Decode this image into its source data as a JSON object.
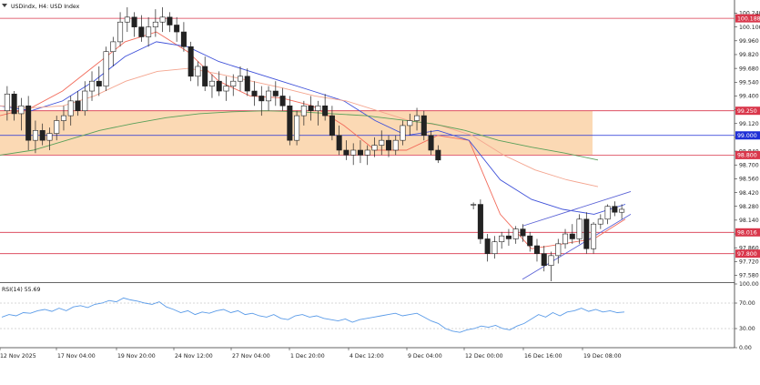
{
  "header": {
    "symbol_label": "USDindx, H4:  USD Index"
  },
  "rsi_label": "RSI(14) 55.69",
  "colors": {
    "zone_fill": "#fbd9b4",
    "level_line": "#d9374b",
    "blue_level": "#1f2fd6",
    "ema_fast": "#f26b5b",
    "ema_mid": "#3f51d9",
    "ema_slow": "#f4a58f",
    "ema_long": "#5aa05a",
    "trendline": "#5b63d6",
    "rsi_line": "#5a9be8",
    "candle": "#222222",
    "grid_axis": "#9a9a9a"
  },
  "chart_data": [
    {
      "type": "candlestick",
      "title": "USDindx, H4:  USD Index",
      "price_ticks": [
        "100.240",
        "100.100",
        "99.960",
        "99.820",
        "99.680",
        "99.540",
        "99.400",
        "99.260",
        "99.120",
        "98.980",
        "98.840",
        "98.700",
        "98.560",
        "98.420",
        "98.280",
        "98.140",
        "98.000",
        "97.860",
        "97.720",
        "97.580"
      ],
      "ylim": [
        97.52,
        100.3
      ],
      "time_ticks": [
        "12 Nov 2025",
        "17 Nov 04:00",
        "19 Nov 20:00",
        "24 Nov 12:00",
        "27 Nov 04:00",
        "1 Dec 20:00",
        "4 Dec 12:00",
        "9 Dec 04:00",
        "12 Dec 00:00",
        "16 Dec 16:00",
        "19 Dec 08:00"
      ],
      "level_tags": [
        {
          "value": 100.188,
          "label": "100.188",
          "kind": "red"
        },
        {
          "value": 99.25,
          "label": "99.250",
          "kind": "red"
        },
        {
          "value": 99.0,
          "label": "99.000",
          "kind": "blue"
        },
        {
          "value": 98.8,
          "label": "98.800",
          "kind": "red"
        },
        {
          "value": 98.016,
          "label": "98.016",
          "kind": "red"
        },
        {
          "value": 97.8,
          "label": "97.800",
          "kind": "red"
        }
      ],
      "zone": {
        "top": 99.25,
        "bottom": 98.8
      },
      "ohlc": [
        [
          99.25,
          99.5,
          99.15,
          99.42
        ],
        [
          99.42,
          99.45,
          99.15,
          99.22
        ],
        [
          99.22,
          99.38,
          99.05,
          99.3
        ],
        [
          99.3,
          99.4,
          98.85,
          98.95
        ],
        [
          98.95,
          99.15,
          98.82,
          99.05
        ],
        [
          99.05,
          99.12,
          98.9,
          98.95
        ],
        [
          98.95,
          99.08,
          98.85,
          99.02
        ],
        [
          99.02,
          99.2,
          98.95,
          99.15
        ],
        [
          99.15,
          99.3,
          99.05,
          99.2
        ],
        [
          99.2,
          99.4,
          99.1,
          99.35
        ],
        [
          99.35,
          99.45,
          99.2,
          99.25
        ],
        [
          99.25,
          99.55,
          99.2,
          99.45
        ],
        [
          99.45,
          99.65,
          99.35,
          99.55
        ],
        [
          99.55,
          99.7,
          99.4,
          99.5
        ],
        [
          99.5,
          99.9,
          99.45,
          99.85
        ],
        [
          99.85,
          100.0,
          99.7,
          99.95
        ],
        [
          99.95,
          100.25,
          99.9,
          100.15
        ],
        [
          100.15,
          100.3,
          100.05,
          100.2
        ],
        [
          100.2,
          100.25,
          100.0,
          100.1
        ],
        [
          100.1,
          100.22,
          99.95,
          100.0
        ],
        [
          100.0,
          100.2,
          99.9,
          100.1
        ],
        [
          100.1,
          100.28,
          100.0,
          100.15
        ],
        [
          100.15,
          100.3,
          100.05,
          100.2
        ],
        [
          100.2,
          100.25,
          100.05,
          100.12
        ],
        [
          100.12,
          100.2,
          99.95,
          100.05
        ],
        [
          100.05,
          100.15,
          99.85,
          99.9
        ],
        [
          99.9,
          99.95,
          99.55,
          99.6
        ],
        [
          99.6,
          99.75,
          99.5,
          99.7
        ],
        [
          99.7,
          99.8,
          99.45,
          99.5
        ],
        [
          99.5,
          99.62,
          99.38,
          99.55
        ],
        [
          99.55,
          99.65,
          99.4,
          99.45
        ],
        [
          99.45,
          99.6,
          99.35,
          99.5
        ],
        [
          99.5,
          99.62,
          99.4,
          99.55
        ],
        [
          99.55,
          99.7,
          99.45,
          99.6
        ],
        [
          99.6,
          99.68,
          99.4,
          99.45
        ],
        [
          99.45,
          99.55,
          99.3,
          99.4
        ],
        [
          99.4,
          99.5,
          99.2,
          99.35
        ],
        [
          99.35,
          99.5,
          99.25,
          99.45
        ],
        [
          99.45,
          99.55,
          99.3,
          99.4
        ],
        [
          99.4,
          99.48,
          99.25,
          99.3
        ],
        [
          99.3,
          99.4,
          98.9,
          98.95
        ],
        [
          98.95,
          99.25,
          98.9,
          99.2
        ],
        [
          99.2,
          99.35,
          99.1,
          99.3
        ],
        [
          99.3,
          99.4,
          99.15,
          99.25
        ],
        [
          99.25,
          99.35,
          99.1,
          99.3
        ],
        [
          99.3,
          99.42,
          99.15,
          99.2
        ],
        [
          99.2,
          99.3,
          98.95,
          99.0
        ],
        [
          99.0,
          99.1,
          98.8,
          98.85
        ],
        [
          98.85,
          98.95,
          98.75,
          98.8
        ],
        [
          98.8,
          98.92,
          98.7,
          98.85
        ],
        [
          98.85,
          98.95,
          98.72,
          98.8
        ],
        [
          98.8,
          98.9,
          98.7,
          98.85
        ],
        [
          98.85,
          98.98,
          98.78,
          98.9
        ],
        [
          98.9,
          99.05,
          98.8,
          98.95
        ],
        [
          98.95,
          99.0,
          98.78,
          98.85
        ],
        [
          98.85,
          99.0,
          98.8,
          98.95
        ],
        [
          98.95,
          99.15,
          98.9,
          99.1
        ],
        [
          99.1,
          99.22,
          99.0,
          99.15
        ],
        [
          99.15,
          99.28,
          99.05,
          99.2
        ],
        [
          99.2,
          99.25,
          98.95,
          99.0
        ],
        [
          99.0,
          99.05,
          98.8,
          98.85
        ],
        [
          98.85,
          98.9,
          98.72,
          98.75
        ],
        [
          98.3,
          98.32,
          98.25,
          98.3
        ],
        [
          98.3,
          98.35,
          97.9,
          97.95
        ],
        [
          97.95,
          98.0,
          97.72,
          97.8
        ],
        [
          97.8,
          97.98,
          97.75,
          97.92
        ],
        [
          97.92,
          98.02,
          97.85,
          97.98
        ],
        [
          97.98,
          98.05,
          97.88,
          97.95
        ],
        [
          97.95,
          98.08,
          97.9,
          98.05
        ],
        [
          98.05,
          98.1,
          97.92,
          97.98
        ],
        [
          97.98,
          98.02,
          97.82,
          97.88
        ],
        [
          97.88,
          97.95,
          97.72,
          97.8
        ],
        [
          97.8,
          97.88,
          97.62,
          97.68
        ],
        [
          97.68,
          97.82,
          97.52,
          97.78
        ],
        [
          97.78,
          97.95,
          97.7,
          97.9
        ],
        [
          97.9,
          98.05,
          97.85,
          98.0
        ],
        [
          98.0,
          98.1,
          97.9,
          97.95
        ],
        [
          97.95,
          98.2,
          97.9,
          98.15
        ],
        [
          98.15,
          98.22,
          97.8,
          97.85
        ],
        [
          97.85,
          98.12,
          97.8,
          98.1
        ],
        [
          98.1,
          98.2,
          98.05,
          98.15
        ],
        [
          98.15,
          98.3,
          98.1,
          98.28
        ],
        [
          98.28,
          98.33,
          98.18,
          98.22
        ],
        [
          98.22,
          98.3,
          98.15,
          98.25
        ]
      ],
      "moving_averages": {
        "fast": [
          99.2,
          99.28,
          99.45,
          99.7,
          99.95,
          100.05,
          99.85,
          99.55,
          99.4,
          99.38,
          99.3,
          99.1,
          98.85,
          98.85,
          99.0,
          98.95,
          98.2,
          97.85,
          97.9,
          97.95,
          98.15
        ],
        "mid": [
          99.3,
          99.25,
          99.35,
          99.55,
          99.8,
          99.95,
          99.9,
          99.75,
          99.65,
          99.55,
          99.45,
          99.35,
          99.15,
          99.0,
          99.05,
          98.95,
          98.55,
          98.35,
          98.25,
          98.2,
          98.3
        ],
        "slow": [
          99.3,
          99.28,
          99.3,
          99.4,
          99.55,
          99.65,
          99.68,
          99.62,
          99.55,
          99.48,
          99.4,
          99.35,
          99.25,
          99.15,
          99.1,
          99.0,
          98.8,
          98.65,
          98.55,
          98.48
        ],
        "long": [
          98.8,
          98.85,
          98.95,
          99.05,
          99.12,
          99.18,
          99.22,
          99.24,
          99.25,
          99.24,
          99.22,
          99.2,
          99.16,
          99.12,
          99.05,
          98.95,
          98.88,
          98.82,
          98.75
        ]
      },
      "trendlines": [
        {
          "from": [
            97.63,
            97.54
          ],
          "to": [
            98.45,
            98.2
          ]
        },
        {
          "from": [
            97.64,
            98.08
          ],
          "to": [
            98.48,
            98.43
          ]
        }
      ]
    },
    {
      "type": "line",
      "title": "RSI(14) 55.69",
      "y_ticks": [
        "100.00",
        "70.00",
        "30.00",
        "0.00"
      ],
      "ylim": [
        0,
        100
      ],
      "levels": [
        70,
        30
      ],
      "values": [
        48,
        52,
        50,
        55,
        54,
        58,
        60,
        57,
        62,
        58,
        64,
        66,
        63,
        68,
        70,
        74,
        72,
        78,
        75,
        73,
        70,
        68,
        72,
        64,
        60,
        55,
        58,
        52,
        56,
        54,
        58,
        60,
        55,
        58,
        52,
        54,
        50,
        48,
        52,
        46,
        44,
        50,
        52,
        48,
        50,
        46,
        44,
        42,
        45,
        40,
        44,
        46,
        48,
        50,
        52,
        54,
        50,
        52,
        54,
        48,
        42,
        38,
        30,
        26,
        24,
        28,
        30,
        34,
        32,
        35,
        30,
        28,
        34,
        38,
        45,
        52,
        48,
        55,
        50,
        56,
        58,
        62,
        57,
        60,
        56,
        58,
        55,
        56
      ]
    }
  ]
}
